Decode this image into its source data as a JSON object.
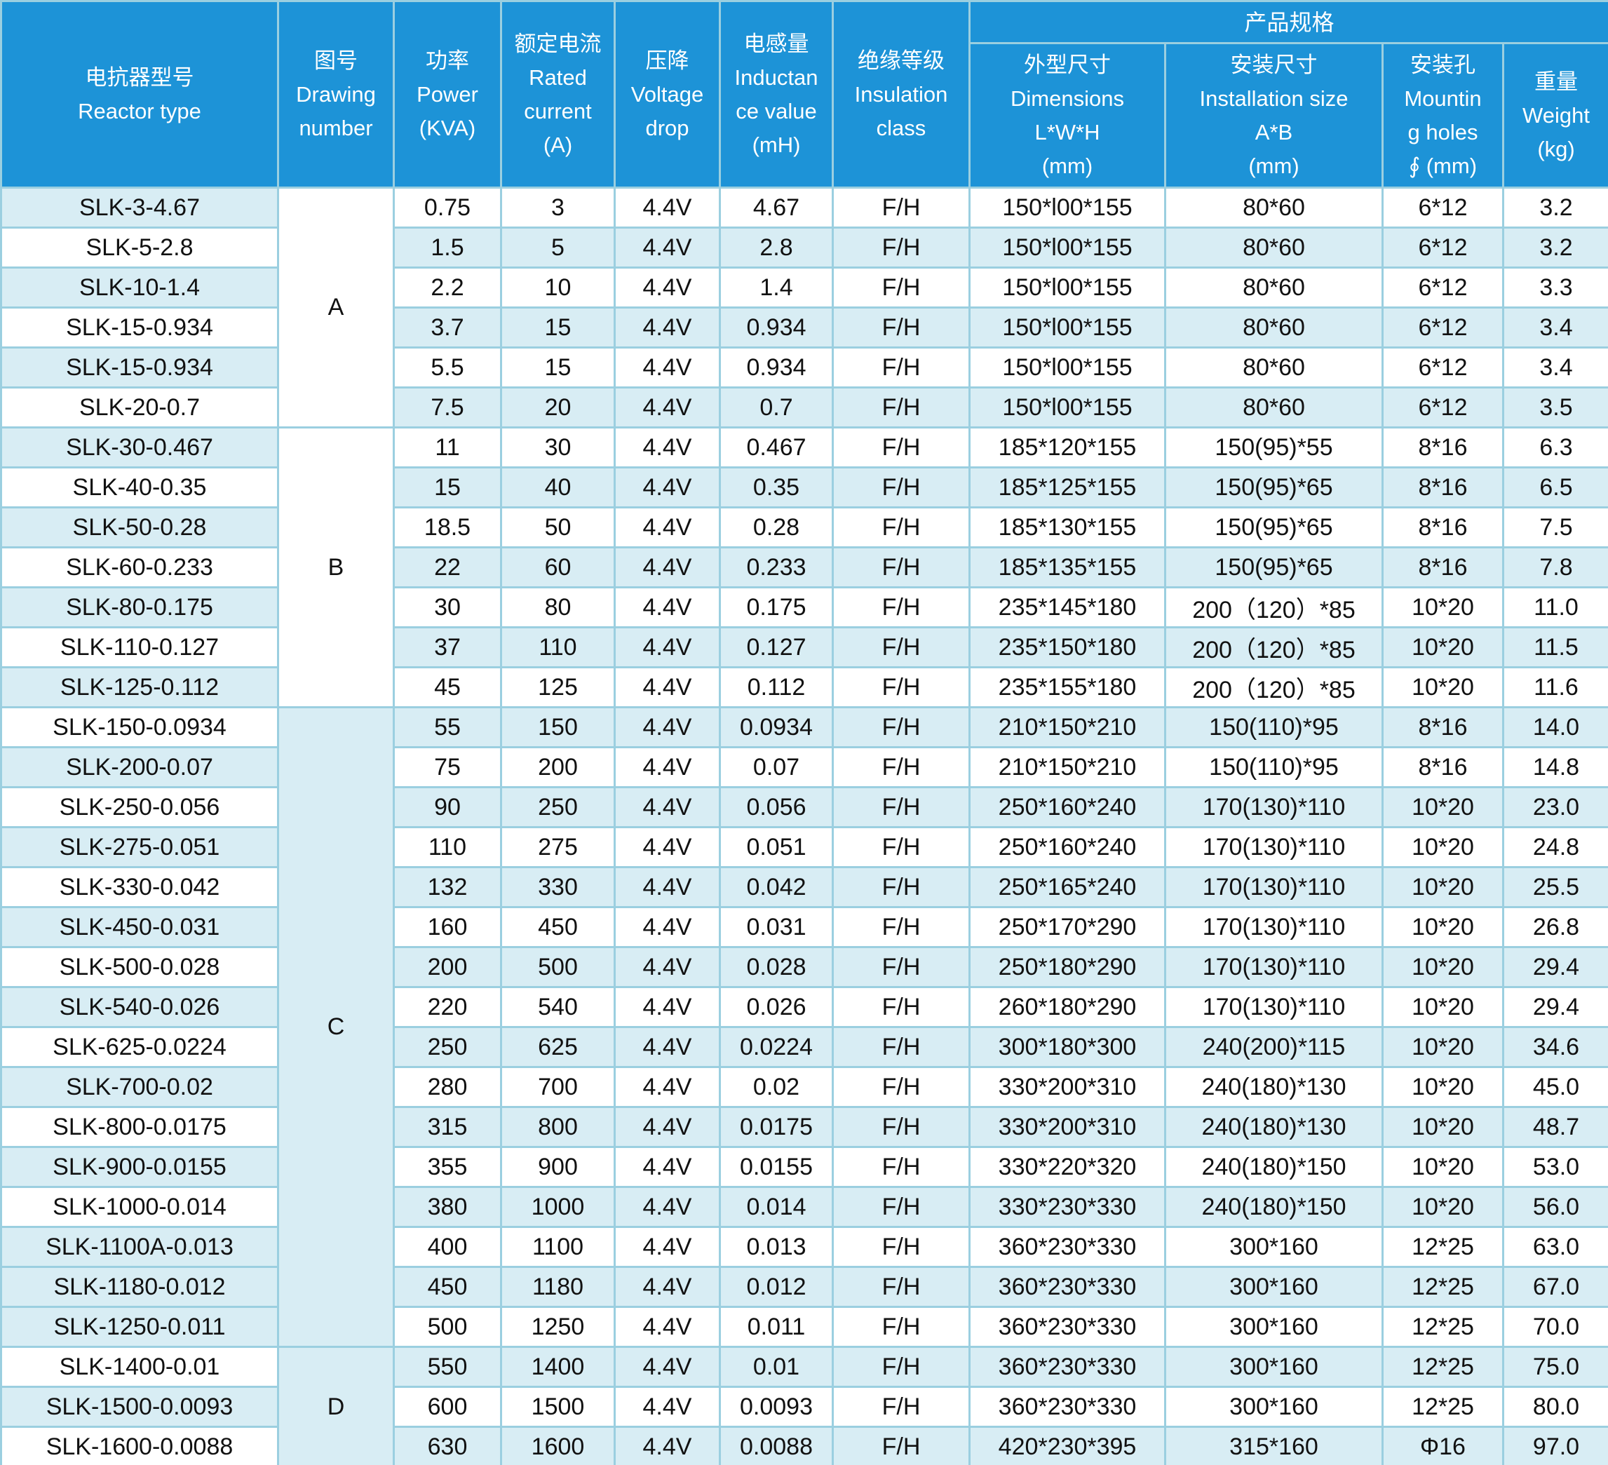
{
  "header": {
    "product_spec": "产品规格",
    "columns": [
      {
        "id": "type",
        "label": "电抗器型号\nReactor type"
      },
      {
        "id": "drawing",
        "label": "图号\nDrawing\nnumber"
      },
      {
        "id": "power",
        "label": "功率\nPower\n(KVA)"
      },
      {
        "id": "current",
        "label": "额定电流\nRated\ncurrent\n(A)"
      },
      {
        "id": "drop",
        "label": "压降\nVoltage\ndrop"
      },
      {
        "id": "inductance",
        "label": "电感量\nInductan\nce value\n(mH)"
      },
      {
        "id": "insulation",
        "label": "绝缘等级\nInsulation\nclass"
      },
      {
        "id": "dimensions",
        "label": "外型尺寸\nDimensions\nL*W*H\n(mm)"
      },
      {
        "id": "installation",
        "label": "安装尺寸\nInstallation size\nA*B\n(mm)"
      },
      {
        "id": "mounting",
        "label": "安装孔\nMountin\ng holes\n∮ (mm)"
      },
      {
        "id": "weight",
        "label": "重量\nWeight\n(kg)"
      }
    ]
  },
  "colors": {
    "header_blue": "#1d93d7",
    "row_light_blue": "#d8edf4",
    "row_white": "#ffffff",
    "border": "#9bcfe0"
  },
  "groups": [
    {
      "drawing_number": "A",
      "rows": [
        {
          "type": "SLK-3-4.67",
          "power": "0.75",
          "current": "3",
          "drop": "4.4V",
          "inductance": "4.67",
          "insulation": "F/H",
          "dimensions": "150*l00*155",
          "installation": "80*60",
          "mounting": "6*12",
          "weight": "3.2"
        },
        {
          "type": "SLK-5-2.8",
          "power": "1.5",
          "current": "5",
          "drop": "4.4V",
          "inductance": "2.8",
          "insulation": "F/H",
          "dimensions": "150*l00*155",
          "installation": "80*60",
          "mounting": "6*12",
          "weight": "3.2"
        },
        {
          "type": "SLK-10-1.4",
          "power": "2.2",
          "current": "10",
          "drop": "4.4V",
          "inductance": "1.4",
          "insulation": "F/H",
          "dimensions": "150*l00*155",
          "installation": "80*60",
          "mounting": "6*12",
          "weight": "3.3"
        },
        {
          "type": "SLK-15-0.934",
          "power": "3.7",
          "current": "15",
          "drop": "4.4V",
          "inductance": "0.934",
          "insulation": "F/H",
          "dimensions": "150*l00*155",
          "installation": "80*60",
          "mounting": "6*12",
          "weight": "3.4"
        },
        {
          "type": "SLK-15-0.934",
          "power": "5.5",
          "current": "15",
          "drop": "4.4V",
          "inductance": "0.934",
          "insulation": "F/H",
          "dimensions": "150*l00*155",
          "installation": "80*60",
          "mounting": "6*12",
          "weight": "3.4"
        },
        {
          "type": "SLK-20-0.7",
          "power": "7.5",
          "current": "20",
          "drop": "4.4V",
          "inductance": "0.7",
          "insulation": "F/H",
          "dimensions": "150*l00*155",
          "installation": "80*60",
          "mounting": "6*12",
          "weight": "3.5"
        }
      ]
    },
    {
      "drawing_number": "B",
      "rows": [
        {
          "type": "SLK-30-0.467",
          "power": "11",
          "current": "30",
          "drop": "4.4V",
          "inductance": "0.467",
          "insulation": "F/H",
          "dimensions": "185*120*155",
          "installation": "150(95)*55",
          "mounting": "8*16",
          "weight": "6.3"
        },
        {
          "type": "SLK-40-0.35",
          "power": "15",
          "current": "40",
          "drop": "4.4V",
          "inductance": "0.35",
          "insulation": "F/H",
          "dimensions": "185*125*155",
          "installation": "150(95)*65",
          "mounting": "8*16",
          "weight": "6.5"
        },
        {
          "type": "SLK-50-0.28",
          "power": "18.5",
          "current": "50",
          "drop": "4.4V",
          "inductance": "0.28",
          "insulation": "F/H",
          "dimensions": "185*130*155",
          "installation": "150(95)*65",
          "mounting": "8*16",
          "weight": "7.5"
        },
        {
          "type": "SLK-60-0.233",
          "power": "22",
          "current": "60",
          "drop": "4.4V",
          "inductance": "0.233",
          "insulation": "F/H",
          "dimensions": "185*135*155",
          "installation": "150(95)*65",
          "mounting": "8*16",
          "weight": "7.8"
        },
        {
          "type": "SLK-80-0.175",
          "power": "30",
          "current": "80",
          "drop": "4.4V",
          "inductance": "0.175",
          "insulation": "F/H",
          "dimensions": "235*145*180",
          "installation": "200（120）*85",
          "mounting": "10*20",
          "weight": "11.0"
        },
        {
          "type": "SLK-110-0.127",
          "power": "37",
          "current": "110",
          "drop": "4.4V",
          "inductance": "0.127",
          "insulation": "F/H",
          "dimensions": "235*150*180",
          "installation": "200（120）*85",
          "mounting": "10*20",
          "weight": "11.5"
        },
        {
          "type": "SLK-125-0.112",
          "power": "45",
          "current": "125",
          "drop": "4.4V",
          "inductance": "0.112",
          "insulation": "F/H",
          "dimensions": "235*155*180",
          "installation": "200（120）*85",
          "mounting": "10*20",
          "weight": "11.6"
        }
      ]
    },
    {
      "drawing_number": "C",
      "rows": [
        {
          "type": "SLK-150-0.0934",
          "power": "55",
          "current": "150",
          "drop": "4.4V",
          "inductance": "0.0934",
          "insulation": "F/H",
          "dimensions": "210*150*210",
          "installation": "150(110)*95",
          "mounting": "8*16",
          "weight": "14.0"
        },
        {
          "type": "SLK-200-0.07",
          "power": "75",
          "current": "200",
          "drop": "4.4V",
          "inductance": "0.07",
          "insulation": "F/H",
          "dimensions": "210*150*210",
          "installation": "150(110)*95",
          "mounting": "8*16",
          "weight": "14.8"
        },
        {
          "type": "SLK-250-0.056",
          "power": "90",
          "current": "250",
          "drop": "4.4V",
          "inductance": "0.056",
          "insulation": "F/H",
          "dimensions": "250*160*240",
          "installation": "170(130)*110",
          "mounting": "10*20",
          "weight": "23.0"
        },
        {
          "type": "SLK-275-0.051",
          "power": "110",
          "current": "275",
          "drop": "4.4V",
          "inductance": "0.051",
          "insulation": "F/H",
          "dimensions": "250*160*240",
          "installation": "170(130)*110",
          "mounting": "10*20",
          "weight": "24.8"
        },
        {
          "type": "SLK-330-0.042",
          "power": "132",
          "current": "330",
          "drop": "4.4V",
          "inductance": "0.042",
          "insulation": "F/H",
          "dimensions": "250*165*240",
          "installation": "170(130)*110",
          "mounting": "10*20",
          "weight": "25.5"
        },
        {
          "type": "SLK-450-0.031",
          "power": "160",
          "current": "450",
          "drop": "4.4V",
          "inductance": "0.031",
          "insulation": "F/H",
          "dimensions": "250*170*290",
          "installation": "170(130)*110",
          "mounting": "10*20",
          "weight": "26.8"
        },
        {
          "type": "SLK-500-0.028",
          "power": "200",
          "current": "500",
          "drop": "4.4V",
          "inductance": "0.028",
          "insulation": "F/H",
          "dimensions": "250*180*290",
          "installation": "170(130)*110",
          "mounting": "10*20",
          "weight": "29.4"
        },
        {
          "type": "SLK-540-0.026",
          "power": "220",
          "current": "540",
          "drop": "4.4V",
          "inductance": "0.026",
          "insulation": "F/H",
          "dimensions": "260*180*290",
          "installation": "170(130)*110",
          "mounting": "10*20",
          "weight": "29.4"
        },
        {
          "type": "SLK-625-0.0224",
          "power": "250",
          "current": "625",
          "drop": "4.4V",
          "inductance": "0.0224",
          "insulation": "F/H",
          "dimensions": "300*180*300",
          "installation": "240(200)*115",
          "mounting": "10*20",
          "weight": "34.6"
        },
        {
          "type": "SLK-700-0.02",
          "power": "280",
          "current": "700",
          "drop": "4.4V",
          "inductance": "0.02",
          "insulation": "F/H",
          "dimensions": "330*200*310",
          "installation": "240(180)*130",
          "mounting": "10*20",
          "weight": "45.0"
        },
        {
          "type": "SLK-800-0.0175",
          "power": "315",
          "current": "800",
          "drop": "4.4V",
          "inductance": "0.0175",
          "insulation": "F/H",
          "dimensions": "330*200*310",
          "installation": "240(180)*130",
          "mounting": "10*20",
          "weight": "48.7"
        },
        {
          "type": "SLK-900-0.0155",
          "power": "355",
          "current": "900",
          "drop": "4.4V",
          "inductance": "0.0155",
          "insulation": "F/H",
          "dimensions": "330*220*320",
          "installation": "240(180)*150",
          "mounting": "10*20",
          "weight": "53.0"
        },
        {
          "type": "SLK-1000-0.014",
          "power": "380",
          "current": "1000",
          "drop": "4.4V",
          "inductance": "0.014",
          "insulation": "F/H",
          "dimensions": "330*230*330",
          "installation": "240(180)*150",
          "mounting": "10*20",
          "weight": "56.0"
        },
        {
          "type": "SLK-1100A-0.013",
          "power": "400",
          "current": "1100",
          "drop": "4.4V",
          "inductance": "0.013",
          "insulation": "F/H",
          "dimensions": "360*230*330",
          "installation": "300*160",
          "mounting": "12*25",
          "weight": "63.0"
        },
        {
          "type": "SLK-1180-0.012",
          "power": "450",
          "current": "1180",
          "drop": "4.4V",
          "inductance": "0.012",
          "insulation": "F/H",
          "dimensions": "360*230*330",
          "installation": "300*160",
          "mounting": "12*25",
          "weight": "67.0"
        },
        {
          "type": "SLK-1250-0.011",
          "power": "500",
          "current": "1250",
          "drop": "4.4V",
          "inductance": "0.011",
          "insulation": "F/H",
          "dimensions": "360*230*330",
          "installation": "300*160",
          "mounting": "12*25",
          "weight": "70.0"
        }
      ]
    },
    {
      "drawing_number": "D",
      "rows": [
        {
          "type": "SLK-1400-0.01",
          "power": "550",
          "current": "1400",
          "drop": "4.4V",
          "inductance": "0.01",
          "insulation": "F/H",
          "dimensions": "360*230*330",
          "installation": "300*160",
          "mounting": "12*25",
          "weight": "75.0"
        },
        {
          "type": "SLK-1500-0.0093",
          "power": "600",
          "current": "1500",
          "drop": "4.4V",
          "inductance": "0.0093",
          "insulation": "F/H",
          "dimensions": "360*230*330",
          "installation": "300*160",
          "mounting": "12*25",
          "weight": "80.0"
        },
        {
          "type": "SLK-1600-0.0088",
          "power": "630",
          "current": "1600",
          "drop": "4.4V",
          "inductance": "0.0088",
          "insulation": "F/H",
          "dimensions": "420*230*395",
          "installation": "315*160",
          "mounting": "Φ16",
          "weight": "97.0"
        }
      ]
    }
  ]
}
